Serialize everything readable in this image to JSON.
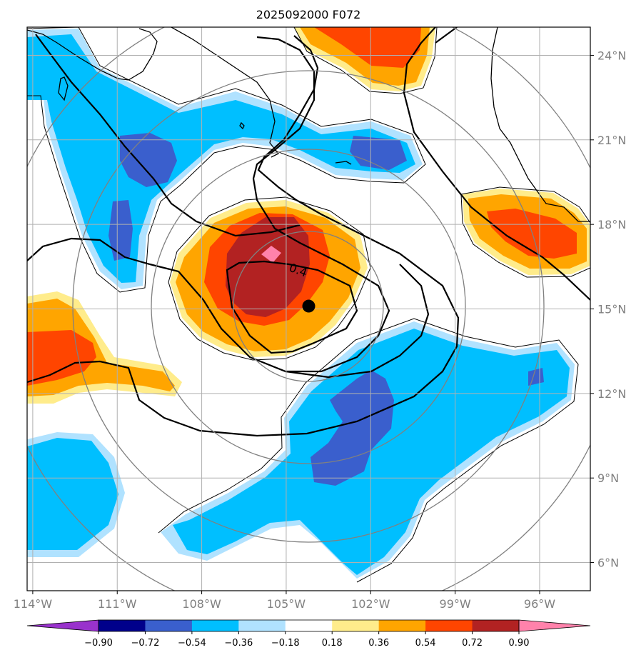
{
  "chart_data": {
    "type": "heatmap",
    "title": "2025092000 F072",
    "projection": "azimuthal map with range rings",
    "x_ticks": [
      "114°W",
      "111°W",
      "108°W",
      "105°W",
      "102°W",
      "99°W",
      "96°W"
    ],
    "x_tick_values": [
      -114,
      -111,
      -108,
      -105,
      -102,
      -99,
      -96
    ],
    "y_ticks": [
      "24°N",
      "21°N",
      "18°N",
      "15°N",
      "12°N",
      "9°N",
      "6°N"
    ],
    "y_tick_values": [
      24,
      21,
      18,
      15,
      12,
      9,
      6
    ],
    "xlim": [
      -114.2,
      -94.2
    ],
    "ylim": [
      5.0,
      25.0
    ],
    "grid": true,
    "center_marker": {
      "lon": -104.2,
      "lat": 15.1
    },
    "contour_label": "0.4",
    "colorbar": {
      "orientation": "horizontal",
      "extend": "both",
      "levels": [
        -0.9,
        -0.72,
        -0.54,
        -0.36,
        -0.18,
        0.18,
        0.36,
        0.54,
        0.72,
        0.9
      ],
      "tick_labels": [
        "−0.90",
        "−0.72",
        "−0.54",
        "−0.36",
        "−0.18",
        "0.18",
        "0.36",
        "0.54",
        "0.72",
        "0.90"
      ],
      "colors": [
        "#9932cc",
        "#00008b",
        "#3a5fcd",
        "#00bfff",
        "#b0e2ff",
        "#ffffff",
        "#ffec8b",
        "#ffa500",
        "#ff4500",
        "#b22222",
        "#ff82ab"
      ]
    },
    "features": [
      {
        "name": "positive core",
        "lon": -104.8,
        "lat": 16.3,
        "value": 0.9
      },
      {
        "name": "positive ring",
        "lon": -104.7,
        "lat": 16.0,
        "value": 0.6
      },
      {
        "name": "negative band south-east",
        "lon": -100.0,
        "lat": 9.5,
        "value": -0.6
      },
      {
        "name": "negative band north-west",
        "lon": -108.0,
        "lat": 20.5,
        "value": -0.6
      },
      {
        "name": "positive north",
        "lon": -102.0,
        "lat": 24.5,
        "value": 0.6
      },
      {
        "name": "positive east",
        "lon": -96.5,
        "lat": 17.5,
        "value": 0.7
      },
      {
        "name": "positive west",
        "lon": -113.0,
        "lat": 13.5,
        "value": 0.6
      },
      {
        "name": "negative south-west",
        "lon": -112.0,
        "lat": 8.0,
        "value": -0.45
      }
    ]
  }
}
